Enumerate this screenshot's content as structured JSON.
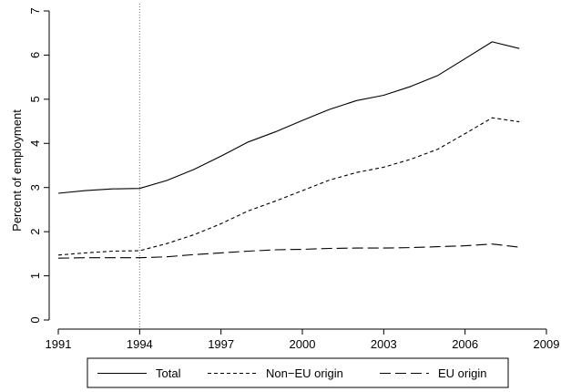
{
  "chart_data": {
    "type": "line",
    "ylabel": "Percent of employment",
    "xlabel": "",
    "xlim": [
      1991,
      2009
    ],
    "ylim": [
      0,
      7
    ],
    "xticks": [
      1991,
      1994,
      1997,
      2000,
      2003,
      2006,
      2009
    ],
    "yticks": [
      0,
      1,
      2,
      3,
      4,
      5,
      6,
      7
    ],
    "reference_line_x": 1994,
    "grid": false,
    "legend_position": "bottom",
    "x": [
      1991,
      1992,
      1993,
      1994,
      1995,
      1996,
      1997,
      1998,
      1999,
      2000,
      2001,
      2002,
      2003,
      2004,
      2005,
      2006,
      2007,
      2008
    ],
    "series": [
      {
        "name": "Total",
        "style": "solid",
        "values": [
          2.87,
          2.93,
          2.97,
          2.98,
          3.16,
          3.41,
          3.71,
          4.03,
          4.26,
          4.52,
          4.77,
          4.97,
          5.09,
          5.29,
          5.54,
          5.92,
          6.3,
          6.15
        ]
      },
      {
        "name": "Non−EU origin",
        "style": "short-dash",
        "values": [
          1.47,
          1.52,
          1.56,
          1.57,
          1.73,
          1.93,
          2.18,
          2.47,
          2.69,
          2.93,
          3.17,
          3.34,
          3.46,
          3.64,
          3.87,
          4.22,
          4.58,
          4.49
        ]
      },
      {
        "name": "EU origin",
        "style": "long-dash",
        "values": [
          1.4,
          1.41,
          1.41,
          1.41,
          1.43,
          1.48,
          1.52,
          1.56,
          1.59,
          1.6,
          1.62,
          1.63,
          1.63,
          1.64,
          1.66,
          1.68,
          1.72,
          1.65
        ]
      }
    ]
  },
  "colors": {
    "line": "#000000",
    "reference_line": "#777777",
    "background": "#ffffff"
  }
}
